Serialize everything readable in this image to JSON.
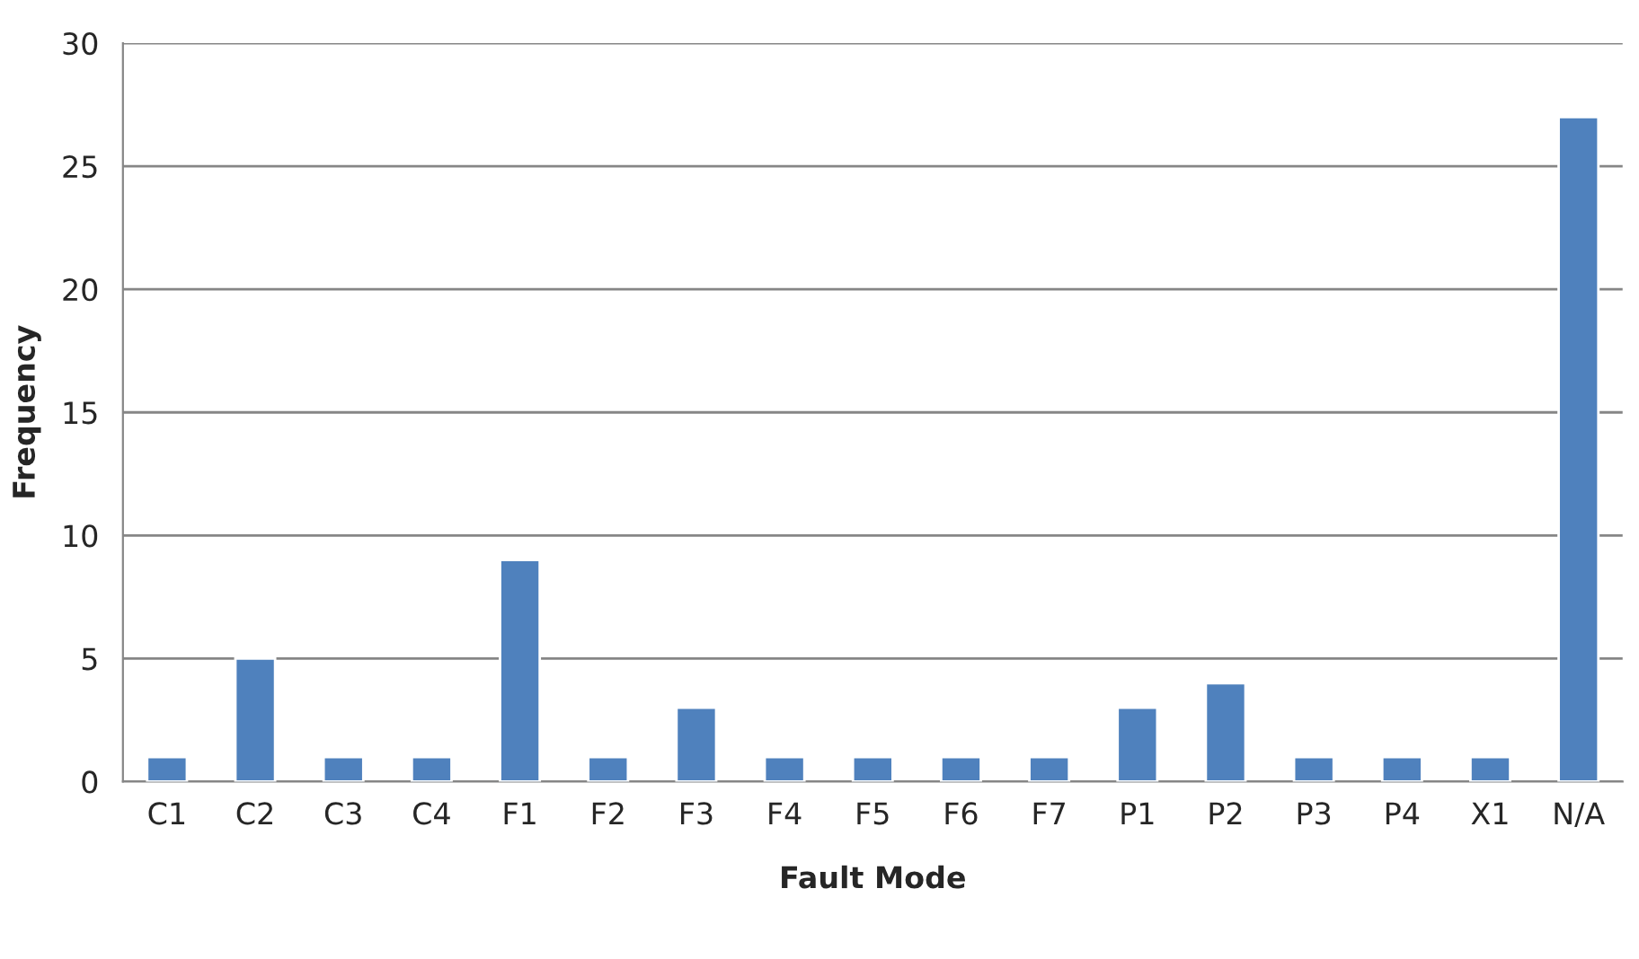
{
  "chart_data": {
    "type": "bar",
    "xlabel": "Fault Mode",
    "ylabel": "Frequency",
    "categories": [
      "C1",
      "C2",
      "C3",
      "C4",
      "F1",
      "F2",
      "F3",
      "F4",
      "F5",
      "F6",
      "F7",
      "P1",
      "P2",
      "P3",
      "P4",
      "X1",
      "N/A"
    ],
    "values": [
      1,
      5,
      1,
      1,
      9,
      1,
      3,
      1,
      1,
      1,
      1,
      3,
      4,
      1,
      1,
      1,
      27
    ],
    "color": "#4f81bd",
    "ylim": [
      0,
      30
    ],
    "yticks": [
      0,
      5,
      10,
      15,
      20,
      25,
      30
    ],
    "grid": "y"
  }
}
